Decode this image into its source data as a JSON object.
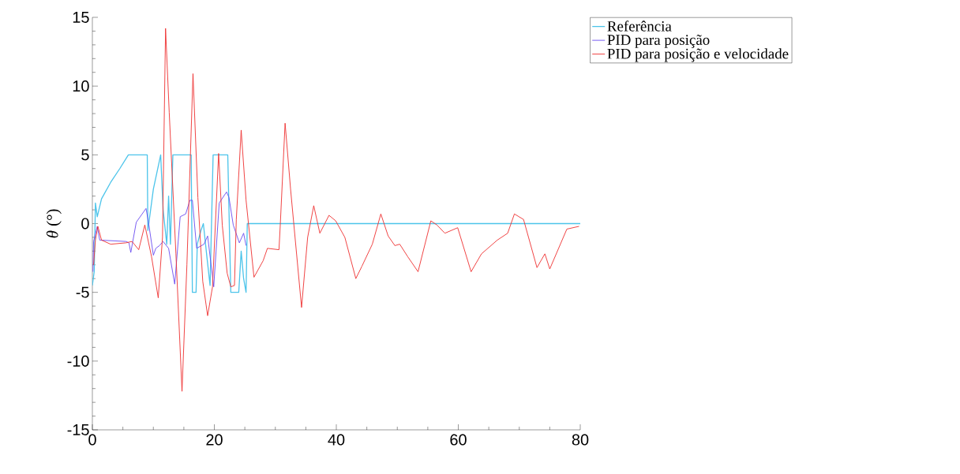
{
  "chart_data": {
    "type": "line",
    "ylabel": "*θ* (°)",
    "xlim": [
      0,
      80
    ],
    "ylim": [
      -15,
      15
    ],
    "xticks": [
      0,
      20,
      40,
      60,
      80
    ],
    "yticks": [
      -15,
      -10,
      -5,
      0,
      5,
      10,
      15
    ],
    "legend": "top right",
    "marker": "none",
    "line_style": "solid",
    "series": [
      {
        "name": "Referência",
        "color": "#4cc4ea",
        "x": [
          0,
          0.3,
          0.5,
          0.8,
          1.5,
          3,
          4.5,
          5.9,
          9.0,
          9.1,
          10.0,
          11.2,
          11.6,
          12.2,
          12.5,
          12.8,
          13.2,
          16.2,
          16.4,
          17.0,
          17.2,
          17.8,
          18.2,
          18.8,
          19.3,
          19.8,
          22.2,
          22.7,
          24.0,
          24.4,
          24.8,
          25.2,
          25.4,
          80
        ],
        "values": [
          -4.5,
          -3.5,
          1.5,
          0.5,
          1.8,
          3,
          4,
          5,
          5,
          -0.5,
          2.5,
          5,
          1,
          -1.5,
          2,
          -1.5,
          5,
          5,
          -5,
          -5,
          -1.5,
          -0.5,
          0,
          -2.5,
          -4.5,
          5,
          5,
          -5,
          -5,
          -2,
          -4,
          -5,
          0,
          0
        ]
      },
      {
        "name": "PID para posição",
        "color": "#6a4cf0",
        "x": [
          0.1,
          0.2,
          0.8,
          1.2,
          5.5,
          6.0,
          6.3,
          7.2,
          8.8,
          9.2,
          10.0,
          10.4,
          11.0,
          11.6,
          12.5,
          13.5,
          14.4,
          15.3,
          16.0,
          16.4,
          17.1,
          18.3,
          18.9,
          19.9,
          20.8,
          22.0,
          22.4,
          23.1,
          24.1,
          24.8,
          25.2
        ],
        "values": [
          -3.5,
          -1.3,
          -0.2,
          -1.2,
          -1.3,
          -1.4,
          -2.1,
          0.1,
          1.1,
          0.1,
          -2.3,
          -1.8,
          -1.6,
          -1.3,
          -1.8,
          -4.4,
          0.5,
          0.7,
          1.7,
          1.7,
          -1.8,
          -1.5,
          -0.9,
          -4.6,
          1.5,
          2.3,
          1.9,
          -0.1,
          -1.4,
          -0.7,
          -1.6
        ]
      },
      {
        "name": "PID para posição e velocidade",
        "color": "#ee3030",
        "x": [
          0.2,
          0.5,
          0.9,
          1.5,
          3,
          5.5,
          6.5,
          7.6,
          8.6,
          9.7,
          10.8,
          11.5,
          12.0,
          12.6,
          13.7,
          14.7,
          15.5,
          16.5,
          17.3,
          18.1,
          18.9,
          19.7,
          20.7,
          21.3,
          22.1,
          22.7,
          23.3,
          23.6,
          24.4,
          25.2,
          26.5,
          28.0,
          28.7,
          30.6,
          30.8,
          31.6,
          32.5,
          34.3,
          35.3,
          36.3,
          37.3,
          38.8,
          39.9,
          41.4,
          43.2,
          44.2,
          45.9,
          47.3,
          48.5,
          49.6,
          50.4,
          51.7,
          53.4,
          55.5,
          56.5,
          57.8,
          59.9,
          62.1,
          63.8,
          66.4,
          68.1,
          69.2,
          70.7,
          72.9,
          74.2,
          75.0,
          77.8,
          79.8
        ],
        "values": [
          -3,
          -1.2,
          -0.2,
          -1.2,
          -1.5,
          -1.4,
          -1.3,
          -1.9,
          -0.1,
          -2.4,
          -5.4,
          -1,
          14.2,
          8.1,
          -2.2,
          -12.2,
          -3,
          10.9,
          1.9,
          -4.2,
          -6.7,
          -4.6,
          5.1,
          -0.1,
          -3.6,
          -4.6,
          -4.5,
          0.3,
          6.8,
          1.7,
          -3.9,
          -2.7,
          -1.8,
          -1.9,
          -0.2,
          7.3,
          2.5,
          -6.1,
          -1.0,
          1.3,
          -0.7,
          0.6,
          0.2,
          -1.0,
          -4.0,
          -3.1,
          -1.5,
          0.7,
          -0.9,
          -1.6,
          -1.5,
          -2.4,
          -3.5,
          0.2,
          -0.1,
          -0.7,
          -0.3,
          -3.5,
          -2.2,
          -1.2,
          -0.7,
          0.7,
          0.3,
          -3.2,
          -2.2,
          -3.3,
          -0.4,
          -0.2
        ]
      }
    ]
  }
}
